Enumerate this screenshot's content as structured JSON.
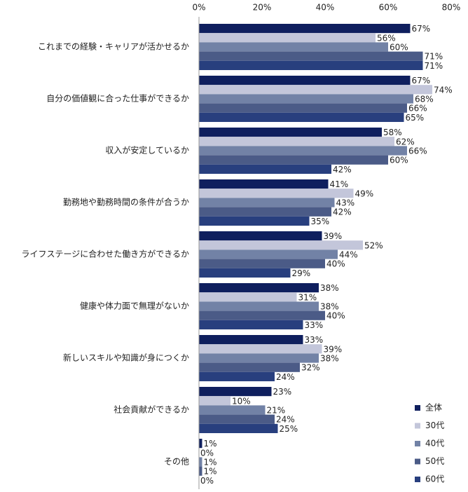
{
  "chart_data": {
    "type": "bar",
    "orientation": "horizontal",
    "categories": [
      "これまでの経験・キャリアが活かせるか",
      "自分の価値観に合った仕事ができるか",
      "収入が安定しているか",
      "勤務地や勤務時間の条件が合うか",
      "ライフステージに合わせた働き方ができるか",
      "健康や体力面で無理がないか",
      "新しいスキルや知識が身につくか",
      "社会貢献ができるか",
      "その他"
    ],
    "series": [
      {
        "name": "全体",
        "color": "#0f1f5e",
        "values": [
          67,
          67,
          58,
          41,
          39,
          38,
          33,
          23,
          1
        ],
        "value_labels": [
          "67%",
          "67%",
          "58%",
          "41%",
          "39%",
          "38%",
          "33%",
          "23%",
          "1%"
        ]
      },
      {
        "name": "30代",
        "color": "#c3c6da",
        "values": [
          56,
          74,
          62,
          49,
          52,
          31,
          39,
          10,
          0
        ],
        "value_labels": [
          "56%",
          "74%",
          "62%",
          "49%",
          "52%",
          "31%",
          "39%",
          "10%",
          "0%"
        ]
      },
      {
        "name": "40代",
        "color": "#7282a6",
        "values": [
          60,
          68,
          66,
          43,
          44,
          38,
          38,
          21,
          1
        ],
        "value_labels": [
          "60%",
          "68%",
          "66%",
          "43%",
          "44%",
          "38%",
          "38%",
          "21%",
          "1%"
        ]
      },
      {
        "name": "50代",
        "color": "#4b5b87",
        "values": [
          71,
          66,
          60,
          42,
          40,
          40,
          32,
          24,
          1
        ],
        "value_labels": [
          "71%",
          "66%",
          "60%",
          "42%",
          "40%",
          "40%",
          "32%",
          "24%",
          "1%"
        ]
      },
      {
        "name": "60代",
        "color": "#283f7e",
        "values": [
          71,
          65,
          42,
          35,
          29,
          33,
          24,
          25,
          0
        ],
        "value_labels": [
          "71%",
          "65%",
          "42%",
          "35%",
          "29%",
          "33%",
          "24%",
          "25%",
          "0%"
        ]
      }
    ],
    "xlim": [
      0,
      80
    ],
    "xticks": [
      {
        "value": 0,
        "label": "0%"
      },
      {
        "value": 20,
        "label": "20%"
      },
      {
        "value": 40,
        "label": "40%"
      },
      {
        "value": 60,
        "label": "60%"
      },
      {
        "value": 80,
        "label": "80%"
      }
    ],
    "legend": "bottom-right"
  }
}
